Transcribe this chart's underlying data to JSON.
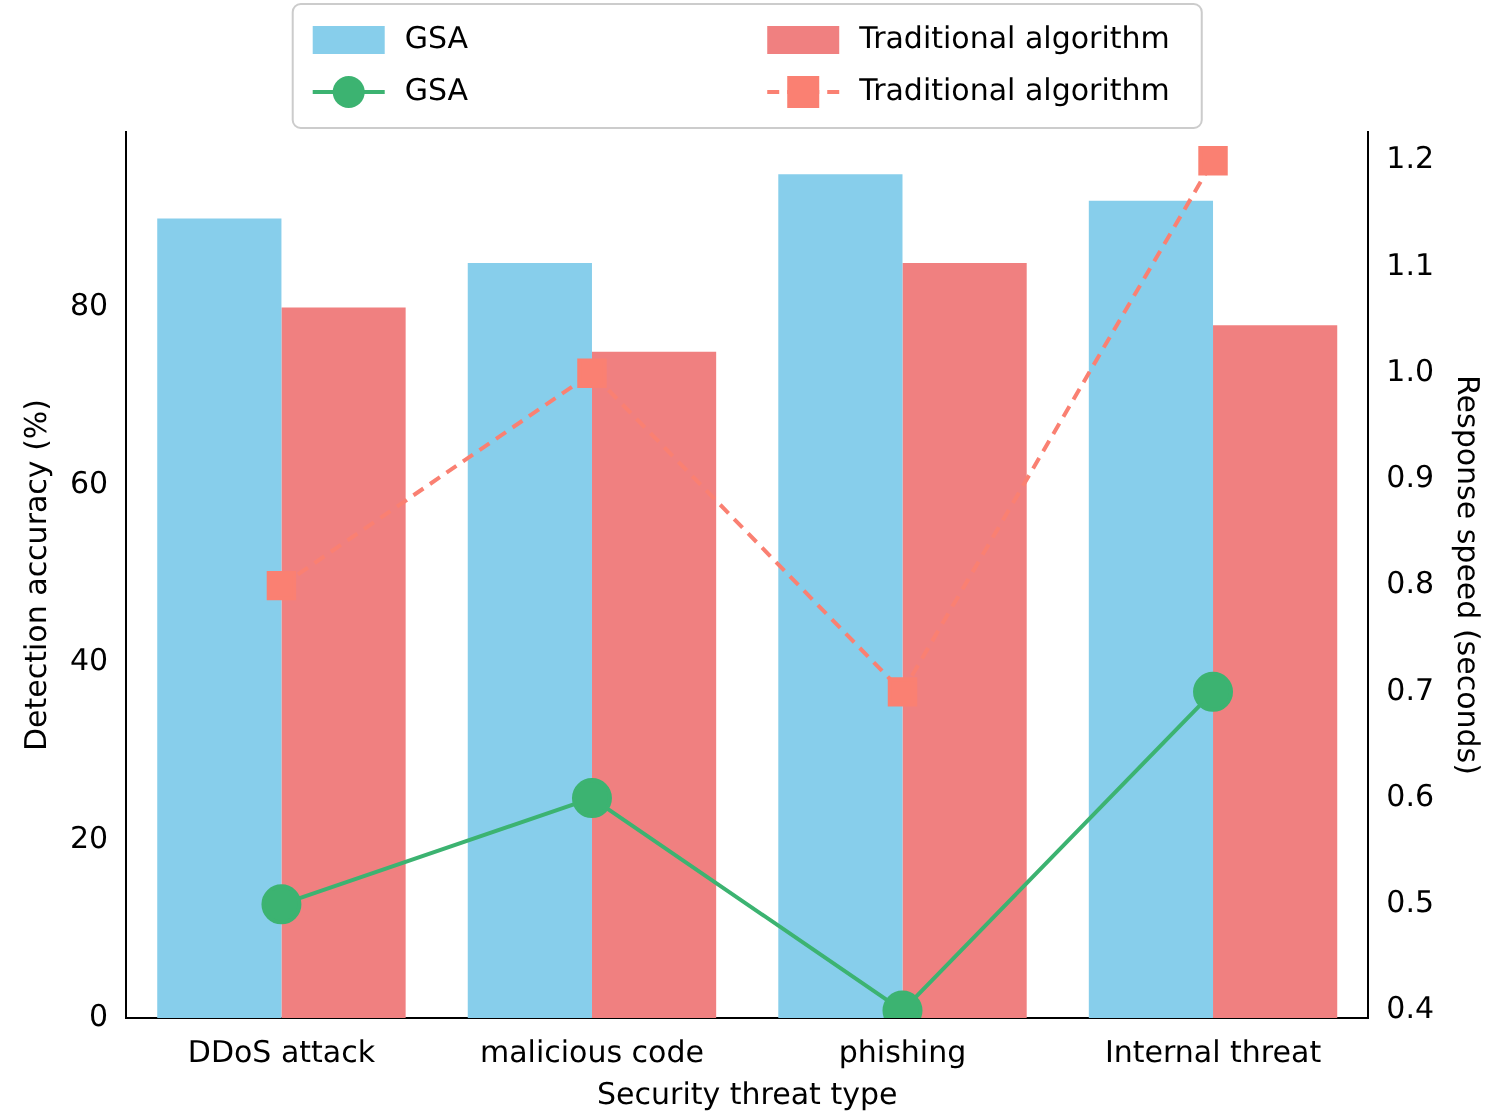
{
  "chart_data": {
    "type": "bar",
    "categories": [
      "DDoS attack",
      "malicious code",
      "phishing",
      "Internal threat"
    ],
    "xlabel": "Security threat type",
    "ylabel": "Detection accuracy (%)",
    "y2label": "Response speed (seconds)",
    "series": [
      {
        "name": "GSA",
        "color": "#87ceeb",
        "values": [
          90,
          85,
          95,
          92
        ]
      },
      {
        "name": "Traditional algorithm",
        "color": "#f08080",
        "values": [
          80,
          75,
          85,
          78
        ]
      },
      {
        "name": "GSA",
        "type": "line",
        "axis": "y2",
        "color": "#3cb371",
        "marker": "circle",
        "line_style": "solid",
        "values": [
          0.5,
          0.6,
          0.4,
          0.7
        ]
      },
      {
        "name": "Traditional algorithm",
        "type": "line",
        "axis": "y2",
        "color": "#fa8072",
        "marker": "square",
        "line_style": "dashed",
        "values": [
          0.8,
          1.0,
          0.7,
          1.2
        ]
      }
    ],
    "ylim": [
      0,
      99.75
    ],
    "yticks": [
      0,
      20,
      40,
      60,
      80
    ],
    "y2lim": [
      0.393,
      1.227
    ],
    "y2ticks": [
      0.4,
      0.5,
      0.6,
      0.7,
      0.8,
      0.9,
      {
        "value": 1,
        "label": "1.0"
      },
      1.1,
      1.2
    ],
    "legend": "top",
    "grid": false
  }
}
